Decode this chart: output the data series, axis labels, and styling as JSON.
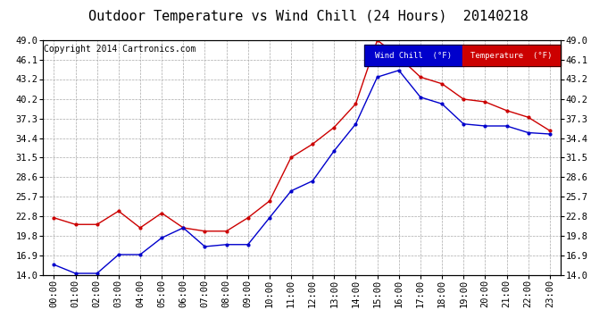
{
  "title": "Outdoor Temperature vs Wind Chill (24 Hours)  20140218",
  "copyright_text": "Copyright 2014 Cartronics.com",
  "background_color": "#ffffff",
  "plot_background": "#ffffff",
  "grid_color": "#aaaaaa",
  "hours": [
    "00:00",
    "01:00",
    "02:00",
    "03:00",
    "04:00",
    "05:00",
    "06:00",
    "07:00",
    "08:00",
    "09:00",
    "10:00",
    "11:00",
    "12:00",
    "13:00",
    "14:00",
    "15:00",
    "16:00",
    "17:00",
    "18:00",
    "19:00",
    "20:00",
    "21:00",
    "22:00",
    "23:00"
  ],
  "temperature": [
    22.5,
    21.5,
    21.5,
    23.5,
    21.0,
    23.2,
    21.0,
    20.5,
    20.5,
    22.5,
    25.0,
    31.5,
    33.5,
    36.0,
    39.5,
    49.0,
    46.5,
    43.5,
    42.5,
    40.2,
    39.8,
    38.5,
    37.5,
    35.5
  ],
  "wind_chill": [
    15.5,
    14.2,
    14.2,
    17.0,
    17.0,
    19.5,
    21.0,
    18.2,
    18.5,
    18.5,
    22.5,
    26.5,
    28.0,
    32.5,
    36.5,
    43.5,
    44.5,
    40.5,
    39.5,
    36.5,
    36.2,
    36.2,
    35.2,
    35.0
  ],
  "temp_color": "#cc0000",
  "wind_color": "#0000cc",
  "ylim": [
    14.0,
    49.0
  ],
  "yticks": [
    14.0,
    16.9,
    19.8,
    22.8,
    25.7,
    28.6,
    31.5,
    34.4,
    37.3,
    40.2,
    43.2,
    46.1,
    49.0
  ],
  "legend_wind_bg": "#0000cc",
  "legend_temp_bg": "#cc0000",
  "legend_wind_label": "Wind Chill  (°F)",
  "legend_temp_label": "Temperature  (°F)",
  "title_fontsize": 11,
  "copyright_fontsize": 7,
  "tick_fontsize": 7.5,
  "marker": ".",
  "markersize": 4,
  "linewidth": 1.0
}
